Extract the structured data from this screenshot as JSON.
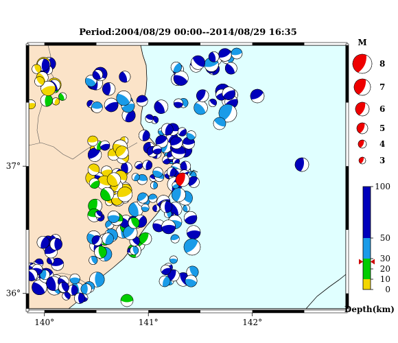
{
  "title": "Period:2004/08/29 00:00--2014/08/29 16:35",
  "map": {
    "lon_ticks": [
      {
        "label": "140°",
        "lon": 140
      },
      {
        "label": "141°",
        "lon": 141
      },
      {
        "label": "142°",
        "lon": 142
      }
    ],
    "lat_ticks": [
      {
        "label": "37°",
        "lat": 37
      },
      {
        "label": "36°",
        "lat": 36
      }
    ],
    "extent": {
      "lon_min": 139.85,
      "lon_max": 142.9,
      "lat_min": 35.88,
      "lat_max": 37.95
    }
  },
  "magnitude_legend": {
    "title": "M",
    "items": [
      {
        "label": "8",
        "m": 8
      },
      {
        "label": "7",
        "m": 7
      },
      {
        "label": "6",
        "m": 6
      },
      {
        "label": "5",
        "m": 5
      },
      {
        "label": "4",
        "m": 4
      },
      {
        "label": "3",
        "m": 3
      }
    ]
  },
  "depth_legend": {
    "title": "Depth(km)",
    "ticks": [
      {
        "label": "100",
        "d": 100
      },
      {
        "label": "50",
        "d": 50
      },
      {
        "label": "30",
        "d": 30
      },
      {
        "label": "20",
        "d": 20
      },
      {
        "label": "10",
        "d": 10
      },
      {
        "label": "0",
        "d": 0
      }
    ],
    "marker_depth": 27
  },
  "colors": {
    "land": "#fbe3c8",
    "sea": "#e0ffff",
    "deep": "#0000bb",
    "mid": "#1a9be8",
    "shallow": "#00cc00",
    "surface": "#f2d600",
    "highlight": "#ee0000",
    "marker": "#cc0000"
  }
}
